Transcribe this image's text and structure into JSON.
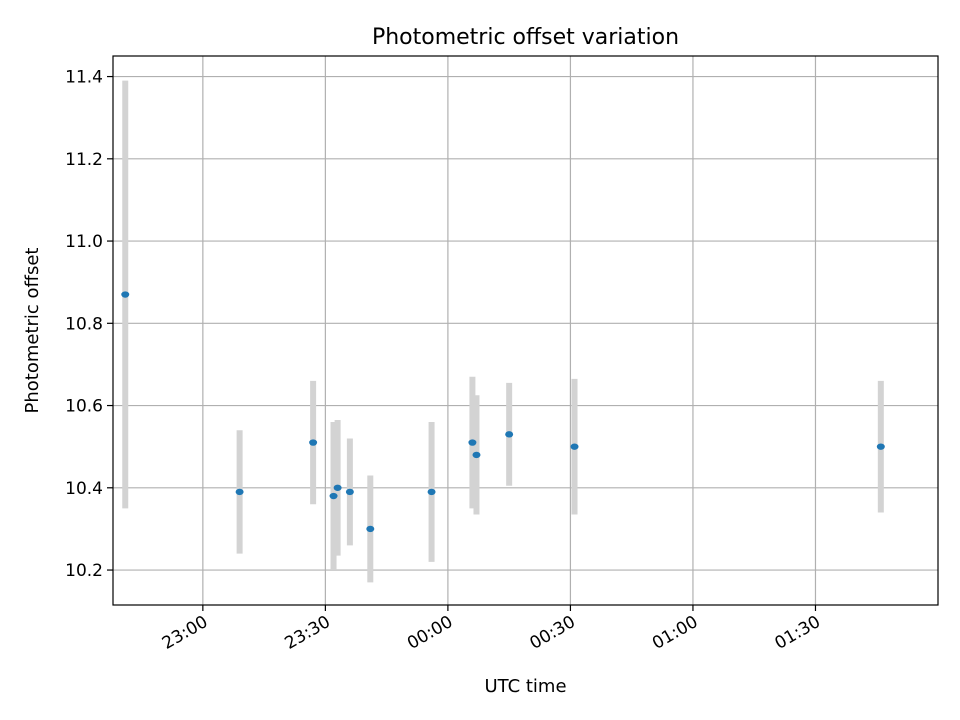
{
  "chart_data": {
    "type": "scatter",
    "title": "Photometric offset variation",
    "xlabel": "UTC time",
    "ylabel": "Photometric offset",
    "x_unit": "time (HH:MM)",
    "xlim": [
      "22:38",
      "02:00"
    ],
    "ylim": [
      10.115,
      11.45
    ],
    "x_ticks": [
      "23:00",
      "23:30",
      "00:00",
      "00:30",
      "01:00",
      "01:30"
    ],
    "y_ticks": [
      "10.2",
      "10.4",
      "10.6",
      "10.8",
      "11.0",
      "11.2",
      "11.4"
    ],
    "grid": true,
    "marker_color": "#1f77b4",
    "errorbar_color": "#d3d3d3",
    "points": [
      {
        "time": "22:41",
        "y": 10.87,
        "err": 0.52
      },
      {
        "time": "23:09",
        "y": 10.39,
        "err": 0.15
      },
      {
        "time": "23:27",
        "y": 10.51,
        "err": 0.15
      },
      {
        "time": "23:32",
        "y": 10.38,
        "err": 0.18
      },
      {
        "time": "23:33",
        "y": 10.4,
        "err": 0.165
      },
      {
        "time": "23:36",
        "y": 10.39,
        "err": 0.13
      },
      {
        "time": "23:41",
        "y": 10.3,
        "err": 0.13
      },
      {
        "time": "23:56",
        "y": 10.39,
        "err": 0.17
      },
      {
        "time": "00:06",
        "y": 10.51,
        "err": 0.16
      },
      {
        "time": "00:07",
        "y": 10.48,
        "err": 0.145
      },
      {
        "time": "00:15",
        "y": 10.53,
        "err": 0.125
      },
      {
        "time": "00:31",
        "y": 10.5,
        "err": 0.165
      },
      {
        "time": "01:46",
        "y": 10.5,
        "err": 0.16
      }
    ]
  }
}
